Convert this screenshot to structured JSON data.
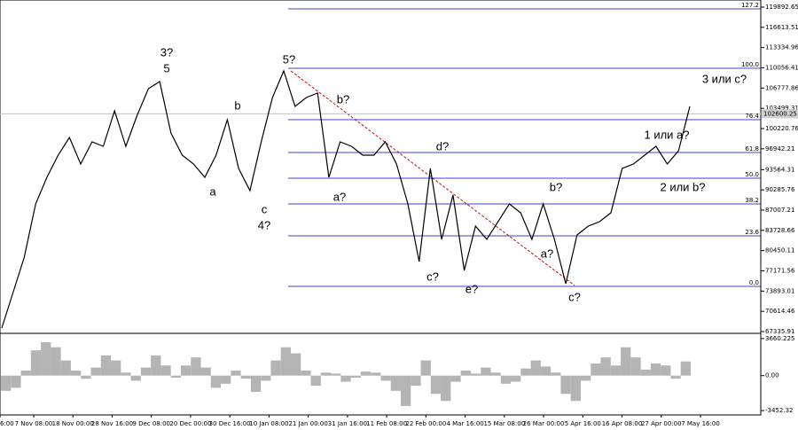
{
  "chart_data": {
    "type": "line",
    "color": "#000000",
    "ylim": [
      67190,
      121040
    ],
    "yticks": [
      119892.65,
      116613.51,
      113334.96,
      110056.41,
      106777.86,
      103499.31,
      100220.76,
      96942.21,
      93564.31,
      90285.76,
      87007.21,
      83728.66,
      80450.11,
      77171.56,
      73893.01,
      70614.46,
      67335.91
    ],
    "current_price": 102600.25,
    "x_labels": [
      "6:00",
      "7 Nov 08:00",
      "18 Nov 00:00",
      "28 Nov 16:00",
      "9 Dec 08:00",
      "20 Dec 00:00",
      "30 Dec 16:00",
      "10 Jan 08:00",
      "21 Jan 00:00",
      "31 Jan 16:00",
      "11 Feb 08:00",
      "22 Feb 00:00",
      "4 Mar 16:00",
      "15 Mar 08:00",
      "26 Mar 00:00",
      "5 Apr 16:00",
      "16 Apr 08:00",
      "27 Apr 00:00",
      "7 May 16:00"
    ],
    "values": [
      67910,
      73654,
      79398,
      88014,
      92322,
      95912,
      98784,
      94476,
      98066,
      97348,
      103092,
      97348,
      102374,
      106682,
      107831,
      99502,
      95912,
      94476,
      92322,
      95912,
      101656,
      93758,
      90168,
      98066,
      105246,
      109554,
      103810,
      105246,
      105964,
      92322,
      98066,
      97348,
      95912,
      95912,
      98066,
      94476,
      88014,
      78680,
      93758,
      82270,
      89450,
      77244,
      84424,
      82270,
      85142,
      88014,
      86578,
      82270,
      88014,
      82270,
      75090,
      82988,
      84424,
      85142,
      86578,
      93758,
      94476,
      95912,
      97348,
      94476,
      96630,
      103810
    ],
    "fib_color": "#0000cc",
    "fib_levels": [
      {
        "label": "127.2",
        "value": 119605
      },
      {
        "label": "100.0",
        "value": 109985
      },
      {
        "label": "76.4",
        "value": 101656
      },
      {
        "label": "61.8",
        "value": 96343
      },
      {
        "label": "50.0",
        "value": 92179
      },
      {
        "label": "38.2",
        "value": 88015
      },
      {
        "label": "23.6",
        "value": 82845
      },
      {
        "label": "0.0",
        "value": 74660
      }
    ],
    "annotations": [
      {
        "text": "3?",
        "color": "#0000cc"
      },
      {
        "text": "5",
        "color": "#e00000"
      },
      {
        "text": "b",
        "color": "#e00000"
      },
      {
        "text": "a",
        "color": "#e00000"
      },
      {
        "text": "c",
        "color": "#e00000"
      },
      {
        "text": "4?",
        "color": "#0000cc"
      },
      {
        "text": "5?",
        "color": "#0000cc"
      },
      {
        "text": "b?",
        "color": "#0000cc"
      },
      {
        "text": "a?",
        "color": "#0000cc"
      },
      {
        "text": "d?",
        "color": "#0000cc"
      },
      {
        "text": "c?",
        "color": "#0000cc"
      },
      {
        "text": "e?",
        "color": "#0000cc"
      },
      {
        "text": "b?",
        "color": "#0000cc"
      },
      {
        "text": "a?",
        "color": "#0000cc"
      },
      {
        "text": "c?",
        "color": "#0000cc"
      },
      {
        "text": "1 или a?",
        "color": "#0000cc"
      },
      {
        "text": "2 или b?",
        "color": "#0000cc"
      },
      {
        "text": "3 или c?",
        "color": "#0000cc"
      }
    ],
    "oscillator": {
      "color": "#b4b4b4",
      "ylim": [
        -3880,
        4000
      ],
      "yticks": [
        3660.225,
        {
          "value": 0,
          "label": "0.00"
        },
        -3452.32
      ],
      "values": [
        -1500,
        -1200,
        500,
        2500,
        3300,
        2800,
        1500,
        500,
        -300,
        800,
        2000,
        1500,
        300,
        -500,
        800,
        2000,
        1000,
        -200,
        1000,
        1800,
        800,
        -1200,
        -800,
        500,
        -300,
        -1600,
        -500,
        1500,
        2800,
        2200,
        500,
        -1000,
        300,
        200,
        -600,
        -200,
        400,
        300,
        -500,
        -1500,
        -3000,
        -1000,
        1500,
        -1800,
        -2500,
        -600,
        500,
        200,
        800,
        300,
        -800,
        -600,
        700,
        1500,
        900,
        300,
        -1800,
        -2500,
        -500,
        1200,
        1800,
        1000,
        2800,
        1800,
        600,
        1200,
        1000,
        -300,
        1400
      ]
    }
  }
}
